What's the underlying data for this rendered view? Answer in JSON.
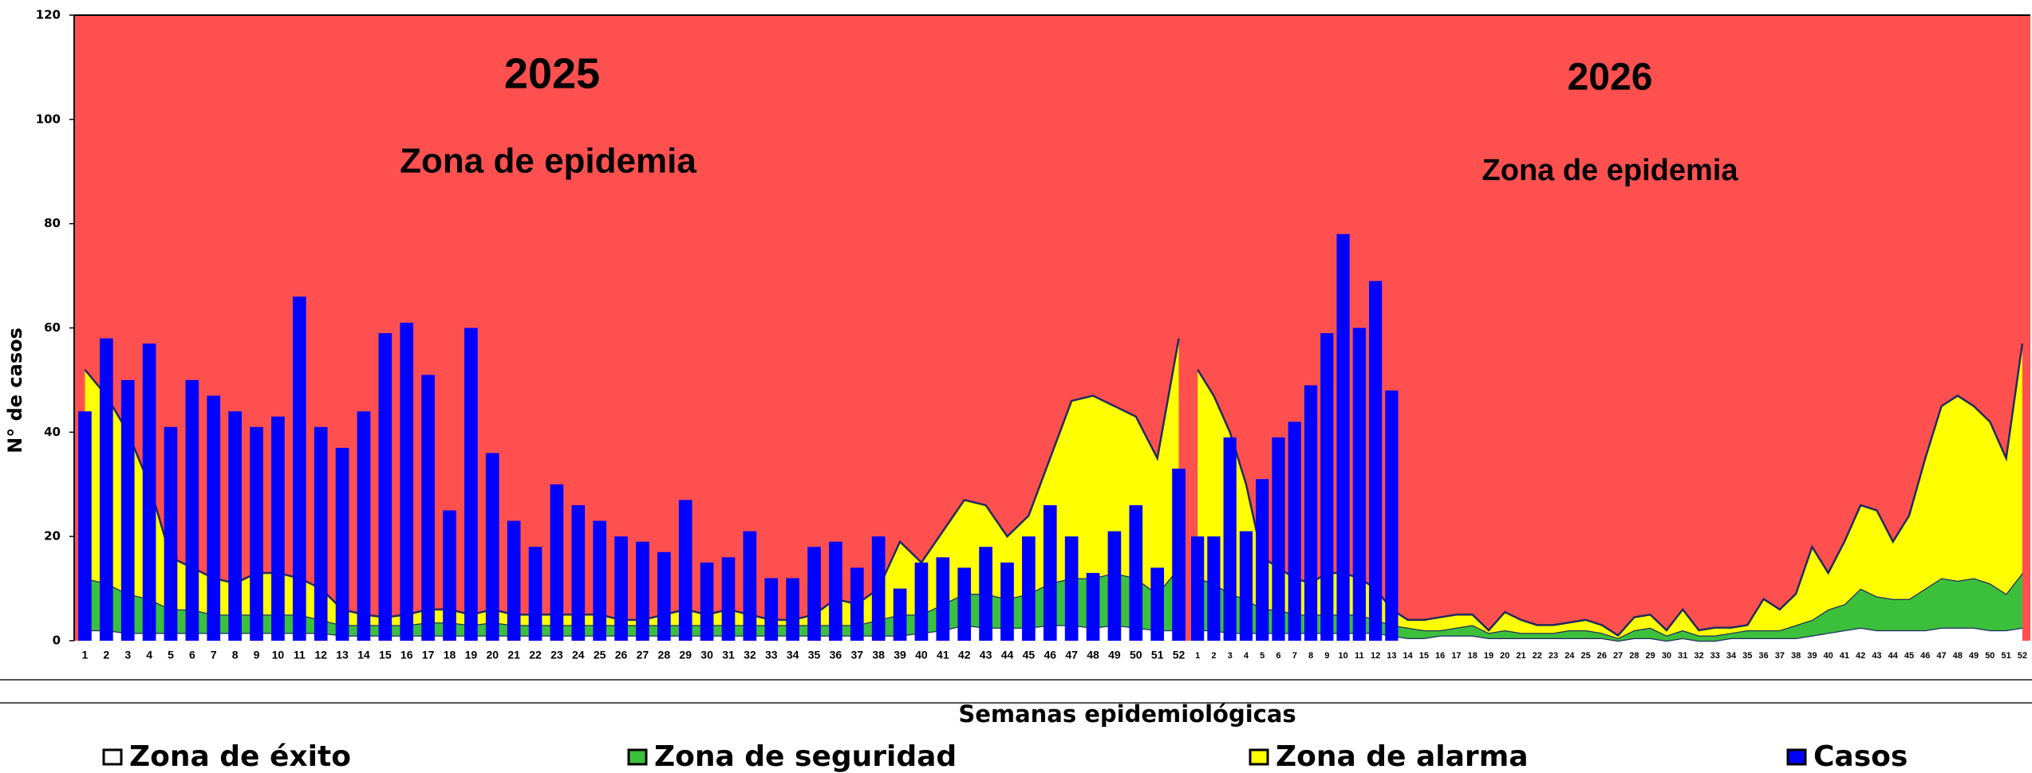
{
  "chart_data": [
    {
      "type": "bar",
      "title": "2025",
      "annotation": "Zona de epidemia",
      "y_label": "N° de casos",
      "x_label": "Semanas epidemiológicas",
      "ylim": [
        0,
        120
      ],
      "yticks": [
        0,
        20,
        40,
        60,
        80,
        100,
        120
      ],
      "background_color": "#ff5050",
      "line_color": "#1f2a60",
      "categories": [
        1,
        2,
        3,
        4,
        5,
        6,
        7,
        8,
        9,
        10,
        11,
        12,
        13,
        14,
        15,
        16,
        17,
        18,
        19,
        20,
        21,
        22,
        23,
        24,
        25,
        26,
        27,
        28,
        29,
        30,
        31,
        32,
        33,
        34,
        35,
        36,
        37,
        38,
        39,
        40,
        41,
        42,
        43,
        44,
        45,
        46,
        47,
        48,
        49,
        50,
        51,
        52
      ],
      "series": [
        {
          "name": "Zona de éxito",
          "type": "area",
          "color": "#ffffff",
          "values": [
            2,
            2,
            1.5,
            1.5,
            1.5,
            1.5,
            1.5,
            1.5,
            1.5,
            1.5,
            1.5,
            1.5,
            1,
            1,
            1,
            1,
            1,
            1,
            1,
            1,
            1,
            1,
            1,
            1,
            1,
            1,
            1,
            1,
            1,
            1,
            1,
            1,
            1,
            1,
            1,
            1,
            1,
            1,
            1,
            1.5,
            2,
            3,
            2.5,
            2.5,
            2.5,
            3,
            3,
            2.5,
            3,
            2.5,
            2,
            2
          ]
        },
        {
          "name": "Zona de seguridad",
          "type": "area",
          "color": "#3cc03c",
          "values": [
            10,
            9,
            7.5,
            6.5,
            4.5,
            4.5,
            3.5,
            3.5,
            3.5,
            3.5,
            3.5,
            2.5,
            2,
            2,
            2,
            2,
            2.5,
            2.5,
            2,
            2.5,
            2,
            2,
            2,
            2,
            2,
            2,
            2,
            2,
            2,
            2,
            2,
            2,
            2,
            2,
            2,
            2,
            2,
            3,
            4,
            3.5,
            5,
            6,
            6.5,
            5.5,
            6.5,
            8,
            9,
            9.5,
            10,
            9.5,
            7,
            12
          ]
        },
        {
          "name": "Zona de alarma",
          "type": "area",
          "color": "#ffff00",
          "values": [
            40,
            36,
            31,
            22,
            10,
            8,
            7,
            6,
            8,
            8,
            7,
            6,
            3,
            2,
            1.5,
            2,
            2.5,
            2.5,
            2,
            2.5,
            2,
            2,
            2,
            2,
            2,
            1,
            1,
            2,
            3,
            2,
            3,
            2,
            1,
            1,
            2,
            5,
            4,
            6,
            14,
            10,
            14,
            18,
            17,
            12,
            15,
            24,
            34,
            35,
            32,
            31,
            26,
            44
          ]
        },
        {
          "name": "Casos",
          "type": "bar",
          "color": "#0000ff",
          "values": [
            44,
            58,
            50,
            57,
            41,
            50,
            47,
            44,
            41,
            43,
            66,
            41,
            37,
            44,
            59,
            61,
            51,
            25,
            60,
            36,
            23,
            18,
            30,
            26,
            23,
            20,
            19,
            17,
            27,
            15,
            16,
            21,
            12,
            12,
            18,
            19,
            14,
            20,
            10,
            15,
            16,
            14,
            18,
            15,
            20,
            26,
            20,
            13,
            21,
            26,
            14,
            33
          ]
        }
      ]
    },
    {
      "type": "bar",
      "title": "2026",
      "annotation": "Zona de epidemia",
      "ylim": [
        0,
        120
      ],
      "background_color": "#ff5050",
      "line_color": "#1f2a60",
      "categories": [
        1,
        2,
        3,
        4,
        5,
        6,
        7,
        8,
        9,
        10,
        11,
        12,
        13,
        14,
        15,
        16,
        17,
        18,
        19,
        20,
        21,
        22,
        23,
        24,
        25,
        26,
        27,
        28,
        29,
        30,
        31,
        32,
        33,
        34,
        35,
        36,
        37,
        38,
        39,
        40,
        41,
        42,
        43,
        44,
        45,
        46,
        47,
        48,
        49,
        50,
        51,
        52
      ],
      "series": [
        {
          "type": "area",
          "color": "#ffffff",
          "values": [
            2,
            2,
            1.5,
            1.5,
            1.5,
            1.5,
            1.5,
            1.5,
            1.5,
            1.5,
            1.5,
            1.5,
            1,
            0.5,
            0.5,
            1,
            1,
            1,
            0.5,
            0.5,
            0.5,
            0.5,
            0.5,
            0.5,
            0.5,
            0.5,
            0,
            0.5,
            0.5,
            0,
            0.5,
            0,
            0,
            0.5,
            0.5,
            0.5,
            0.5,
            0.5,
            1,
            1.5,
            2,
            2.5,
            2,
            2,
            2,
            2,
            2.5,
            2.5,
            2.5,
            2,
            2,
            2.5
          ]
        },
        {
          "type": "area",
          "color": "#3cc03c",
          "values": [
            10,
            9,
            7.5,
            6.5,
            4.5,
            4.5,
            3.5,
            3.5,
            3.5,
            3.5,
            3.5,
            2.5,
            2,
            2,
            1.5,
            1,
            1.5,
            2,
            1,
            1.5,
            1,
            1,
            1,
            1.5,
            1.5,
            1,
            0.5,
            1.5,
            2,
            1,
            1.5,
            1,
            1,
            1,
            1.5,
            1.5,
            1.5,
            2.5,
            3,
            4.5,
            5,
            7.5,
            6.5,
            6,
            6,
            8,
            9.5,
            9,
            9.5,
            9,
            7,
            10.5
          ]
        },
        {
          "type": "area",
          "color": "#ffff00",
          "values": [
            40,
            36,
            31,
            22,
            10,
            8,
            7,
            6,
            8,
            8,
            7,
            6,
            3,
            1.5,
            2,
            2.5,
            2.5,
            2,
            0.5,
            3.5,
            2.5,
            1.5,
            1.5,
            1.5,
            2,
            1.5,
            0.5,
            2.5,
            2.5,
            1,
            4,
            1,
            1.5,
            1,
            1,
            6,
            4,
            6,
            14,
            7,
            12,
            16,
            16.5,
            11,
            16,
            25,
            33,
            35.5,
            33,
            31,
            26,
            44
          ]
        },
        {
          "type": "bar",
          "color": "#0000ff",
          "values": [
            20,
            20,
            39,
            21,
            31,
            39,
            42,
            49,
            59,
            78,
            60,
            69,
            48,
            null,
            null,
            null,
            null,
            null,
            null,
            null,
            null,
            null,
            null,
            null,
            null,
            null,
            null,
            null,
            null,
            null,
            null,
            null,
            null,
            null,
            null,
            null,
            null,
            null,
            null,
            null,
            null,
            null,
            null,
            null,
            null,
            null,
            null,
            null,
            null,
            null,
            null,
            null
          ]
        }
      ]
    }
  ]
}
